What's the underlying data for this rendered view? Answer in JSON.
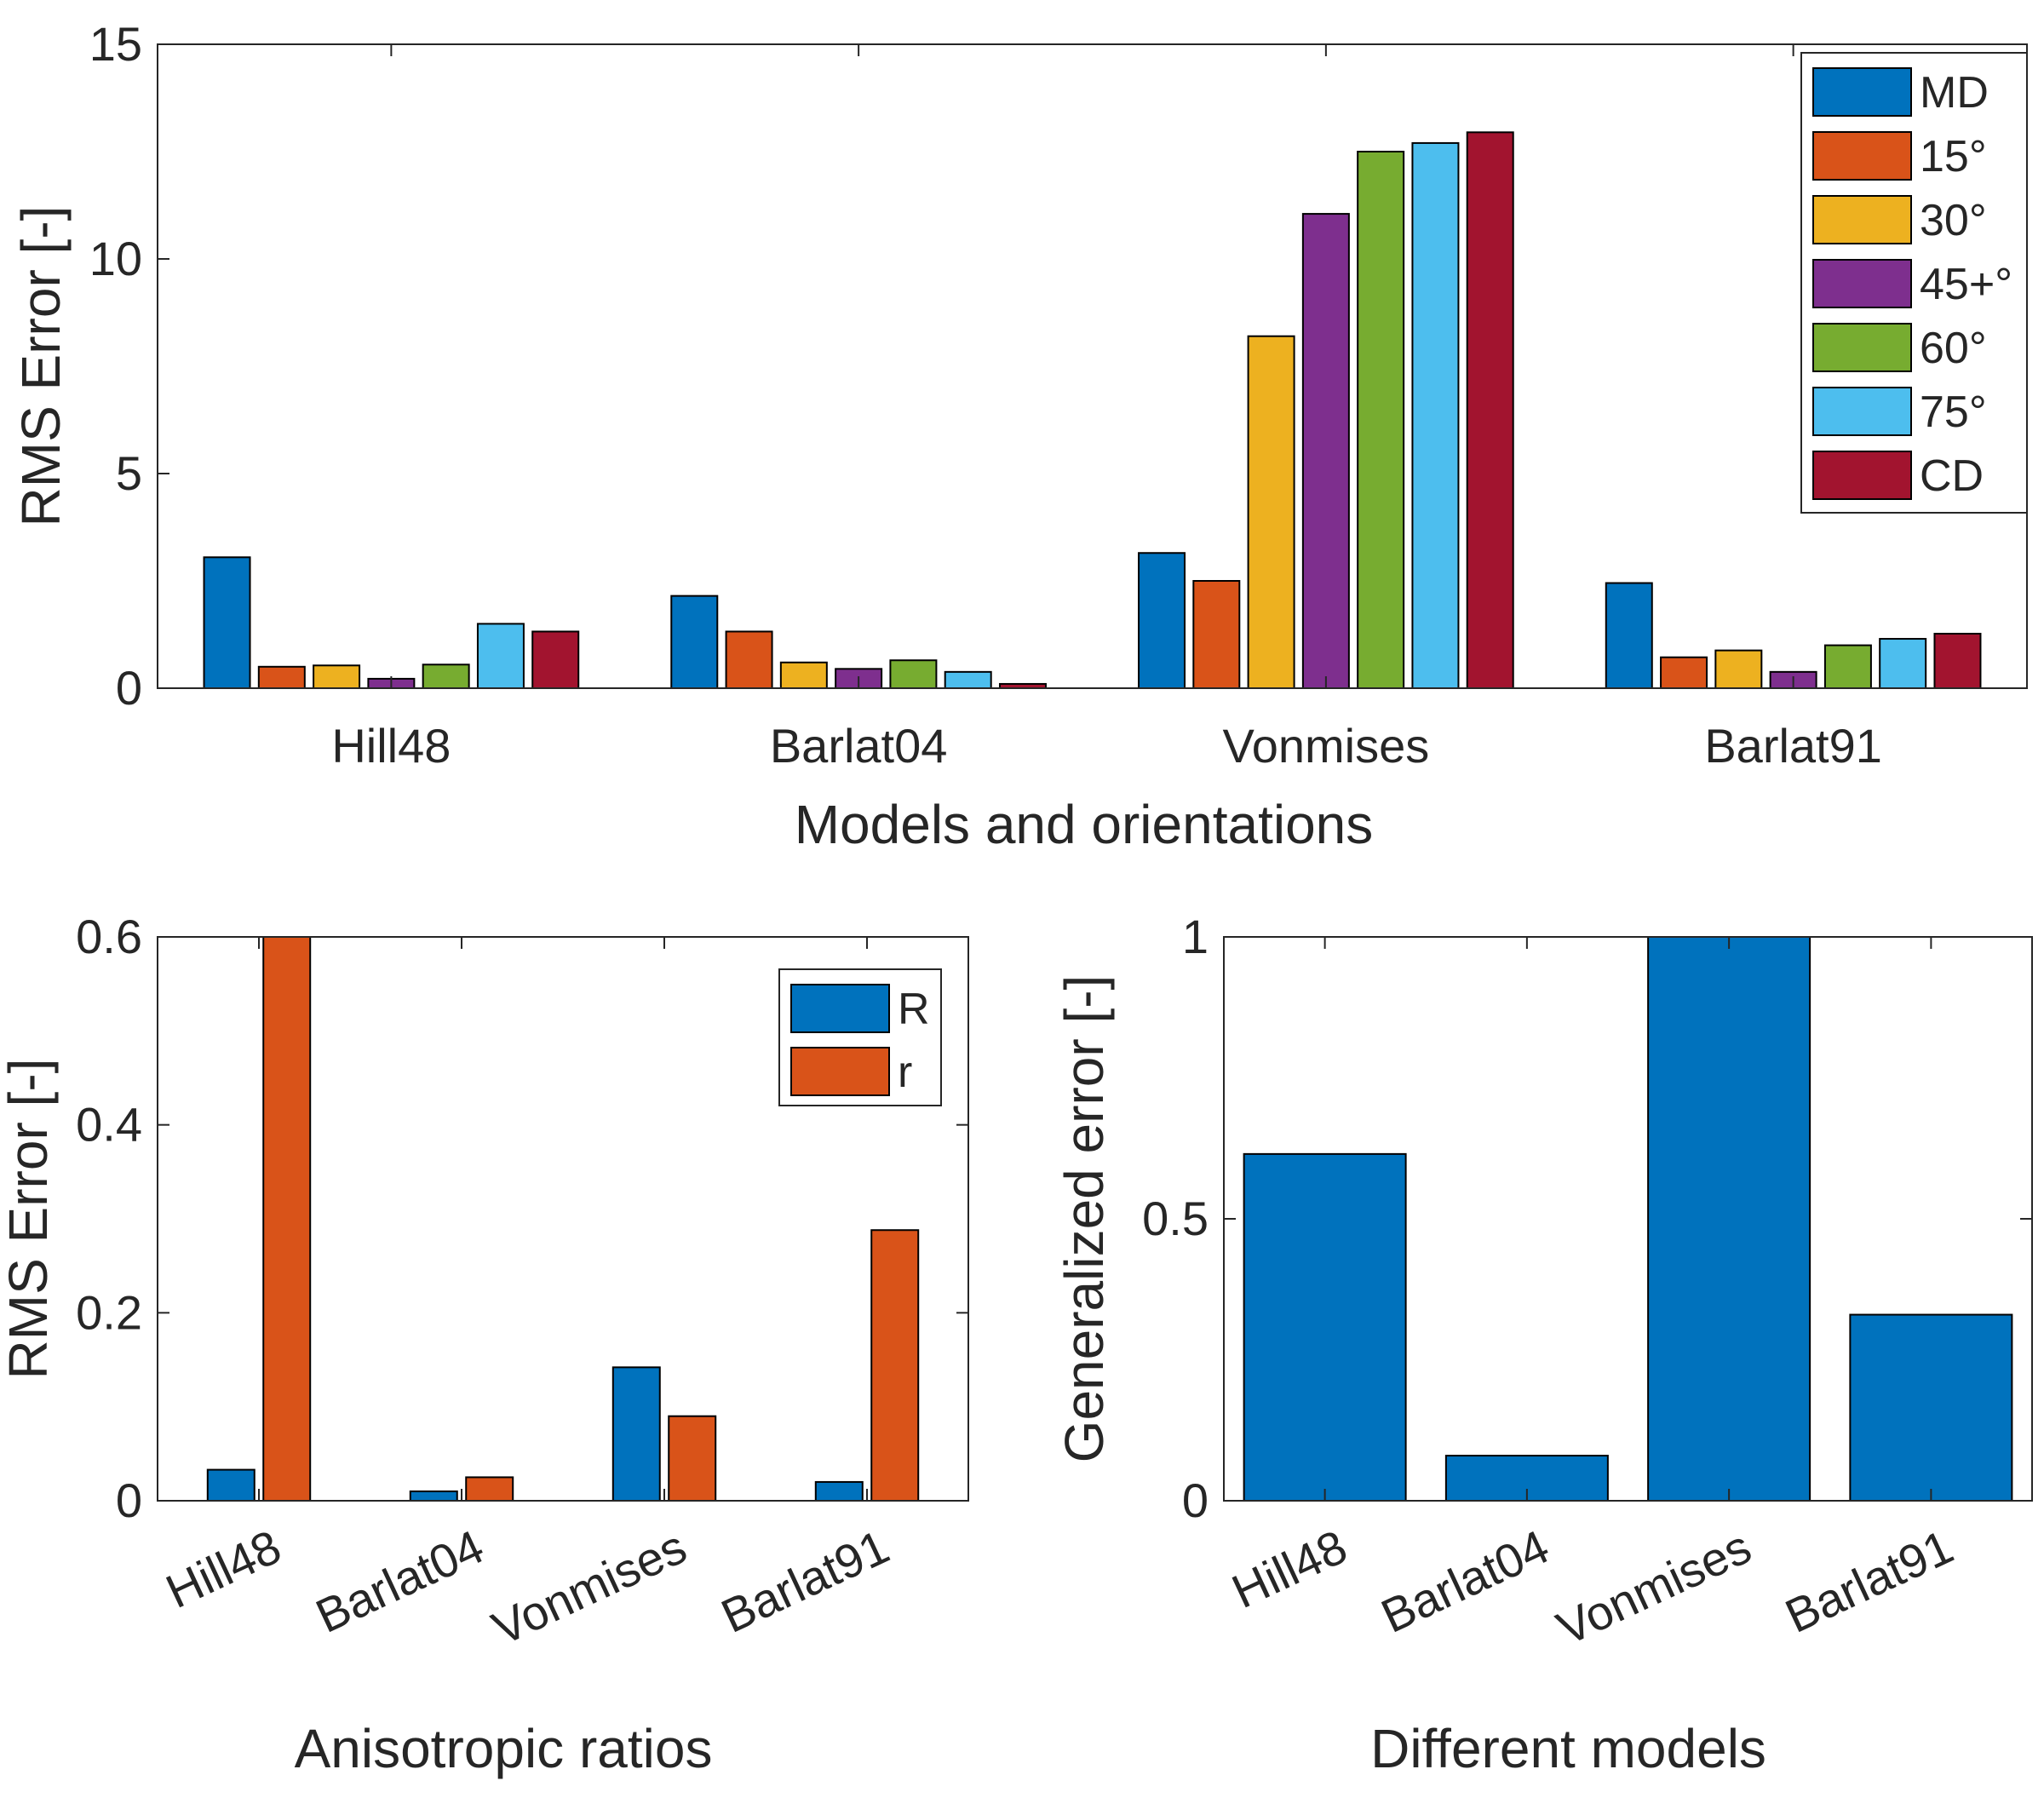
{
  "chart_data": [
    {
      "id": "top",
      "type": "bar",
      "title": "",
      "xlabel": "Models and orientations",
      "ylabel": "RMS Error [-]",
      "ylim": [
        0,
        15
      ],
      "yticks": [
        0,
        5,
        10,
        15
      ],
      "categories": [
        "Hill48",
        "Barlat04",
        "Vonmises",
        "Barlat91"
      ],
      "legend_position": "top-right",
      "series": [
        {
          "name": "MD",
          "color": "#0072BD",
          "values": [
            3.05,
            2.15,
            3.15,
            2.45
          ]
        },
        {
          "name": "15°",
          "color": "#D95319",
          "values": [
            0.5,
            1.32,
            2.5,
            0.72
          ]
        },
        {
          "name": "30°",
          "color": "#EDB120",
          "values": [
            0.53,
            0.6,
            8.2,
            0.88
          ]
        },
        {
          "name": "45+°",
          "color": "#7E2F8E",
          "values": [
            0.22,
            0.45,
            11.05,
            0.38
          ]
        },
        {
          "name": "60°",
          "color": "#77AC30",
          "values": [
            0.55,
            0.65,
            12.5,
            1.0
          ]
        },
        {
          "name": "75°",
          "color": "#4DBEEE",
          "values": [
            1.5,
            0.38,
            12.7,
            1.15
          ]
        },
        {
          "name": "CD",
          "color": "#A2142F",
          "values": [
            1.32,
            0.1,
            12.95,
            1.27
          ]
        }
      ]
    },
    {
      "id": "bottom-left",
      "type": "bar",
      "title": "",
      "xlabel": "Anisotropic ratios",
      "ylabel": "RMS Error [-]",
      "ylim": [
        0,
        0.6
      ],
      "yticks": [
        0,
        0.2,
        0.4,
        0.6
      ],
      "ytick_labels": [
        "0",
        "0.2",
        "0.4",
        "0.6"
      ],
      "categories": [
        "Hill48",
        "Barlat04",
        "Vonmises",
        "Barlat91"
      ],
      "legend_position": "top-right",
      "series": [
        {
          "name": "R",
          "color": "#0072BD",
          "values": [
            0.033,
            0.01,
            0.142,
            0.02
          ]
        },
        {
          "name": "r",
          "color": "#D95319",
          "values": [
            0.6,
            0.025,
            0.09,
            0.288
          ]
        }
      ]
    },
    {
      "id": "bottom-right",
      "type": "bar",
      "title": "",
      "xlabel": "Different models",
      "ylabel": "Generalized error [-]",
      "ylim": [
        0,
        1
      ],
      "yticks": [
        0,
        0.5,
        1
      ],
      "ytick_labels": [
        "0",
        "0.5",
        "1"
      ],
      "categories": [
        "Hill48",
        "Barlat04",
        "Vonmises",
        "Barlat91"
      ],
      "series": [
        {
          "name": "Generalized error",
          "color": "#0072BD",
          "values": [
            0.615,
            0.08,
            1.0,
            0.33
          ]
        }
      ]
    }
  ]
}
